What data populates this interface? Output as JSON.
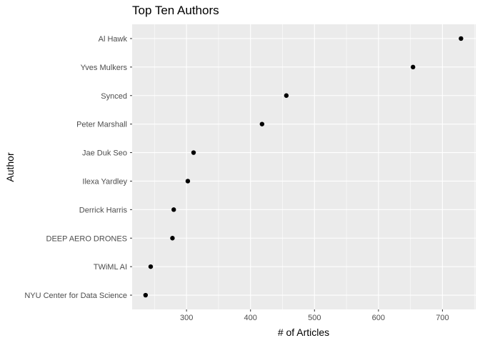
{
  "chart_data": {
    "type": "scatter",
    "title": "Top Ten Authors",
    "xlabel": "# of Articles",
    "ylabel": "Author",
    "xlim": [
      215,
      752
    ],
    "xticks": [
      300,
      400,
      500,
      600,
      700
    ],
    "categories": [
      "NYU Center for Data Science",
      "TWiML AI",
      "DEEP AERO DRONES",
      "Derrick Harris",
      "Ilexa Yardley",
      "Jae Duk Seo",
      "Peter Marshall",
      "Synced",
      "Yves Mulkers",
      "Al Hawk"
    ],
    "values": [
      236,
      244,
      278,
      280,
      302,
      311,
      418,
      456,
      654,
      729
    ],
    "grid": true,
    "legend": "none",
    "colors": {
      "panel_background": "#ebebeb",
      "grid_major": "#ffffff",
      "point": "#000000",
      "tick_mark": "#333333",
      "tick_label": "#4d4d4d"
    }
  }
}
